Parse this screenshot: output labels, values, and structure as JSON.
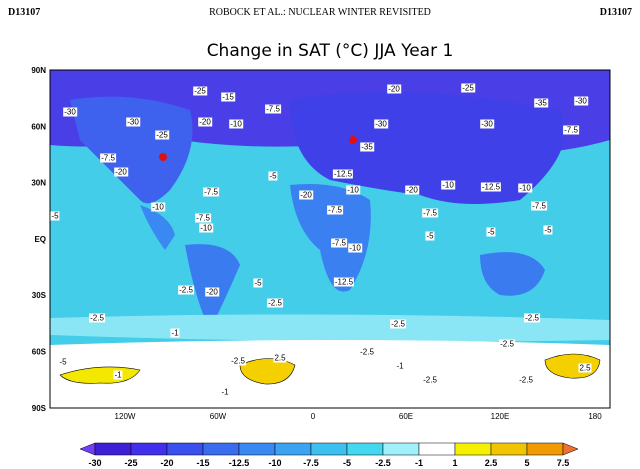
{
  "header": {
    "left": "D13107",
    "title": "ROBOCK ET AL.: NUCLEAR WINTER REVISITED",
    "right": "D13107"
  },
  "figure": {
    "title": "Change in SAT (°C) JJA Year 1",
    "lat_labels": [
      "90N",
      "60N",
      "30N",
      "EQ",
      "30S",
      "60S",
      "90S"
    ],
    "lon_labels": [
      "120W",
      "60W",
      "0",
      "60E",
      "120E",
      "180"
    ],
    "contour_labels": [
      "-30",
      "-25",
      "-15",
      "-20",
      "-25",
      "-35",
      "-30",
      "-30",
      "-20",
      "-10",
      "-7.5",
      "-25",
      "-35",
      "-30",
      "-30",
      "-7.5",
      "-7.5",
      "-20",
      "-5",
      "-7.5",
      "-10",
      "-5",
      "-20",
      "-12.5",
      "-10",
      "-20",
      "-10",
      "-12.5",
      "-10",
      "-7.5",
      "-7.5",
      "-7.5",
      "-5",
      "-7.5",
      "-10",
      "-5",
      "-5",
      "-7.5",
      "-10",
      "-5",
      "-12.5",
      "-2.5",
      "-20",
      "-2.5",
      "-2.5",
      "-2.5",
      "-2.5",
      "-1",
      "-2.5",
      "-2.5",
      "-5",
      "-2.5",
      "2.5",
      "-1",
      "-2.5",
      "-1",
      "-2.5",
      "2.5",
      "-1"
    ],
    "colorbar": {
      "labels": [
        "-30",
        "-25",
        "-20",
        "-15",
        "-12.5",
        "-10",
        "-7.5",
        "-5",
        "-2.5",
        "-1",
        "1",
        "2.5",
        "5",
        "7.5"
      ],
      "colors": [
        "#7040ff",
        "#3f20d8",
        "#4030ee",
        "#3c50f0",
        "#3a6cf0",
        "#3a88f2",
        "#3aa4f2",
        "#3cc0f0",
        "#44d8f0",
        "#a0f0fa",
        "#ffffff",
        "#f5f000",
        "#f0c400",
        "#f09a00",
        "#f07030"
      ]
    }
  }
}
